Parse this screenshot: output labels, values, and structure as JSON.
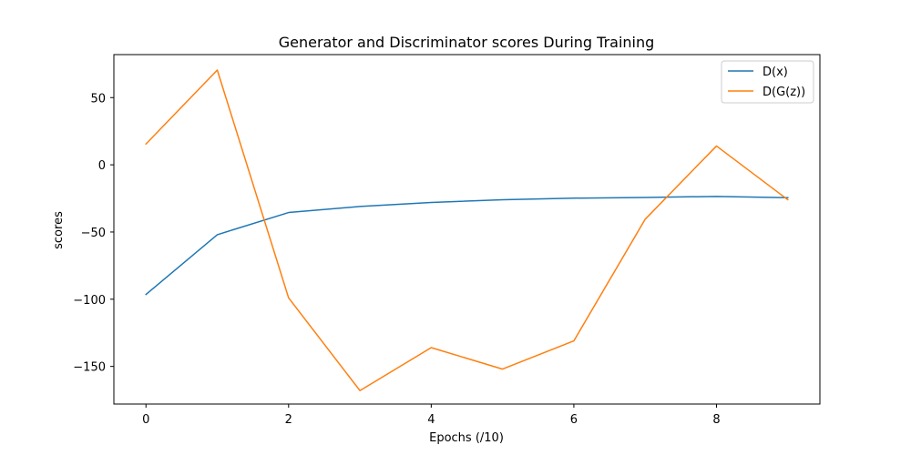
{
  "chart_data": {
    "type": "line",
    "title": "Generator and Discriminator scores During Training",
    "xlabel": "Epochs (/10)",
    "ylabel": "scores",
    "xlim": [
      -0.45,
      9.45
    ],
    "ylim": [
      -178,
      82
    ],
    "xticks": [
      0,
      2,
      4,
      6,
      8
    ],
    "yticks": [
      50,
      0,
      -50,
      -100,
      -150
    ],
    "xtick_labels": [
      "0",
      "2",
      "4",
      "6",
      "8"
    ],
    "ytick_labels": [
      "50",
      "0",
      "−50",
      "−100",
      "−150"
    ],
    "x": [
      0,
      1,
      2,
      3,
      4,
      5,
      6,
      7,
      8,
      9
    ],
    "series": [
      {
        "name": "D(x)",
        "color": "#1f77b4",
        "values": [
          -96.5,
          -52,
          -35.5,
          -31,
          -28,
          -26,
          -24.8,
          -24.3,
          -23.5,
          -24.5
        ]
      },
      {
        "name": "D(G(z))",
        "color": "#ff7f0e",
        "values": [
          15.5,
          70.5,
          -99,
          -168,
          -136,
          -152,
          -131,
          -40.5,
          14,
          -26
        ]
      }
    ],
    "legend": "upper-right",
    "grid": false
  }
}
